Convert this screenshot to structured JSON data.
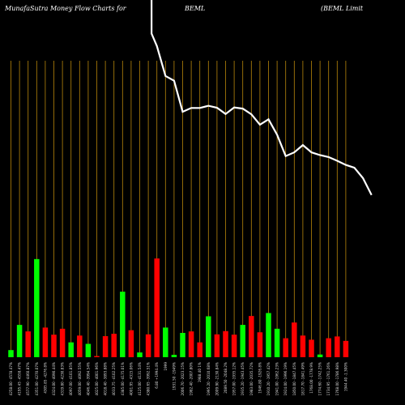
{
  "header": {
    "left": "MunafaSutra  Money Flow  Charts for",
    "center": "BEML",
    "right": "(BEML  Limit"
  },
  "colors": {
    "background": "#000000",
    "up": "#00ff00",
    "down": "#ff0000",
    "price_line": "#ffffff",
    "grid": "#b8860b"
  },
  "chart_data": {
    "type": "bar",
    "title": "MunafaSutra Money Flow Charts for BEML (BEML Limit",
    "categories": [
      "4258.00 -4578.47%",
      "4195.45 -4558.47%",
      "4577.90 -4460.87%",
      "4351.00 -4270.07%",
      "4305.85 -4276.8%",
      "4324.00 -4090.44%",
      "4319.80 -4230.83%",
      "4097.00 -4101.85%",
      "4059.00 -4092.55%",
      "4046.40 -3994.54%",
      "4025.00 -4001.96%",
      "4018.40 -3893.88%",
      "4033.75 -4102.25%",
      "4385.00 -4175.01%",
      "4001.95 -4315.06%",
      "4125.00 -4131.54%",
      "4380.65 -3992.51%",
      "6.80 +1994.4%",
      "1999",
      "1931.50 -1949%",
      "2006.70 -2023.15%",
      "1982.40 -2007.80%",
      "1988.40 1%",
      "1995.20 -2010.68%",
      "2009.90 -2130.84%",
      "2089.50 -2048.2%",
      "1957.00 -1935.12%",
      "1935.20 -1943.45%",
      "1983.00 -2035.72%",
      "1946.80 -1926.8%",
      "1910.20 -1957.42%",
      "1941.00 -1962.23%",
      "1924.00 -1996.19%",
      "1850.00 -1847.45%",
      "1817.70 -1841.49%",
      "1768.00 -1778.9%",
      "1774.60 -1742.25%",
      "1734.95 -1761.26%",
      "1768.00 -1786.98%",
      "1944.40 -1.300%"
    ],
    "directions": [
      "up",
      "up",
      "down",
      "up",
      "down",
      "down",
      "down",
      "up",
      "down",
      "up",
      "down",
      "down",
      "down",
      "up",
      "down",
      "up",
      "down",
      "down",
      "up",
      "up",
      "up",
      "down",
      "down",
      "up",
      "down",
      "down",
      "down",
      "up",
      "down",
      "down",
      "up",
      "up",
      "down",
      "down",
      "down",
      "down",
      "up",
      "down",
      "down",
      "down"
    ],
    "values": [
      2.4,
      10.9,
      8.7,
      33.1,
      10.0,
      7.6,
      9.6,
      5.0,
      7.3,
      4.5,
      0.4,
      7.1,
      7.9,
      22.1,
      9.1,
      1.6,
      7.7,
      33.3,
      10.0,
      0.8,
      8.2,
      8.7,
      5.0,
      13.8,
      7.7,
      8.8,
      7.6,
      10.9,
      13.9,
      8.4,
      14.9,
      9.6,
      6.4,
      11.7,
      7.3,
      5.9,
      0.9,
      6.4,
      7.0,
      5.5
    ],
    "ylim": [
      0,
      100
    ],
    "price": [
      null,
      null,
      null,
      null,
      null,
      null,
      null,
      null,
      null,
      null,
      null,
      null,
      null,
      null,
      null,
      null,
      null,
      null,
      96,
      95,
      null,
      null,
      null,
      null,
      null,
      null,
      null,
      null,
      null,
      null,
      null,
      null,
      null,
      null,
      null,
      null,
      null,
      null,
      null,
      null
    ],
    "price_line": [
      1.03,
      0.99,
      0.895,
      0.88,
      0.781,
      0.793,
      0.793,
      0.8,
      0.794,
      0.774,
      0.795,
      0.791,
      0.773,
      0.74,
      0.757,
      0.708,
      0.64,
      0.652,
      0.675,
      0.652,
      0.643,
      0.637,
      0.625,
      0.612,
      0.603,
      0.57,
      0.516
    ]
  }
}
